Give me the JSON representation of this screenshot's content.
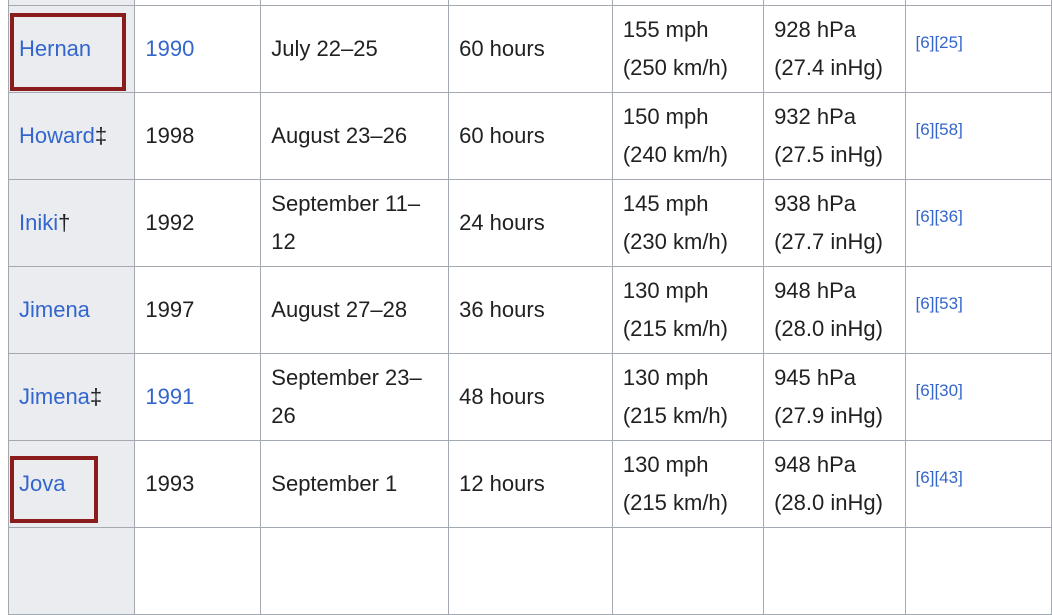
{
  "table": {
    "rows": [
      {
        "name": "Hernan",
        "mark": null,
        "year": "1990",
        "year_link": true,
        "dates": "July 22–25",
        "duration": "60 hours",
        "wind_mph": "155 mph",
        "wind_kmh": "(250 km/h)",
        "pressure_hpa": "928 hPa",
        "pressure_inhg": "(27.4 inHg)",
        "refs": [
          "[6]",
          "[25]"
        ]
      },
      {
        "name": "Howard",
        "mark": "‡",
        "year": "1998",
        "year_link": false,
        "dates": "August 23–26",
        "duration": "60 hours",
        "wind_mph": "150 mph",
        "wind_kmh": "(240 km/h)",
        "pressure_hpa": "932 hPa",
        "pressure_inhg": "(27.5 inHg)",
        "refs": [
          "[6]",
          "[58]"
        ]
      },
      {
        "name": "Iniki",
        "mark": "†",
        "year": "1992",
        "year_link": false,
        "dates": "September 11–12",
        "duration": "24 hours",
        "wind_mph": "145 mph",
        "wind_kmh": "(230 km/h)",
        "pressure_hpa": "938 hPa",
        "pressure_inhg": "(27.7 inHg)",
        "refs": [
          "[6]",
          "[36]"
        ]
      },
      {
        "name": "Jimena",
        "mark": null,
        "year": "1997",
        "year_link": false,
        "dates": "August 27–28",
        "duration": "36 hours",
        "wind_mph": "130 mph",
        "wind_kmh": "(215 km/h)",
        "pressure_hpa": "948 hPa",
        "pressure_inhg": "(28.0 inHg)",
        "refs": [
          "[6]",
          "[53]"
        ]
      },
      {
        "name": "Jimena",
        "mark": "‡",
        "year": "1991",
        "year_link": true,
        "dates": "September 23–26",
        "duration": "48 hours",
        "wind_mph": "130 mph",
        "wind_kmh": "(215 km/h)",
        "pressure_hpa": "945 hPa",
        "pressure_inhg": "(27.9 inHg)",
        "refs": [
          "[6]",
          "[30]"
        ]
      },
      {
        "name": "Jova",
        "mark": null,
        "year": "1993",
        "year_link": false,
        "dates": "September 1",
        "duration": "12 hours",
        "wind_mph": "130 mph",
        "wind_kmh": "(215 km/h)",
        "pressure_hpa": "948 hPa",
        "pressure_inhg": "(28.0 inHg)",
        "refs": [
          "[6]",
          "[43]"
        ]
      }
    ]
  }
}
